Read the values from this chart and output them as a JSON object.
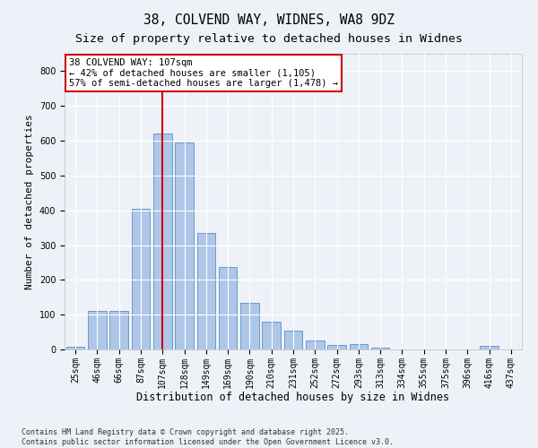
{
  "title1": "38, COLVEND WAY, WIDNES, WA8 9DZ",
  "title2": "Size of property relative to detached houses in Widnes",
  "xlabel": "Distribution of detached houses by size in Widnes",
  "ylabel": "Number of detached properties",
  "categories": [
    "25sqm",
    "46sqm",
    "66sqm",
    "87sqm",
    "107sqm",
    "128sqm",
    "149sqm",
    "169sqm",
    "190sqm",
    "210sqm",
    "231sqm",
    "252sqm",
    "272sqm",
    "293sqm",
    "313sqm",
    "334sqm",
    "355sqm",
    "375sqm",
    "396sqm",
    "416sqm",
    "437sqm"
  ],
  "values": [
    8,
    110,
    110,
    405,
    620,
    595,
    335,
    238,
    135,
    80,
    55,
    27,
    13,
    16,
    5,
    0,
    0,
    0,
    0,
    10,
    0
  ],
  "bar_color": "#aec6e8",
  "bar_edge_color": "#5a8fc2",
  "bar_linewidth": 0.6,
  "vline_index": 4,
  "vline_color": "#cc0000",
  "annotation_text": "38 COLVEND WAY: 107sqm\n← 42% of detached houses are smaller (1,105)\n57% of semi-detached houses are larger (1,478) →",
  "annotation_box_color": "#ffffff",
  "annotation_box_edge": "#cc0000",
  "ylim": [
    0,
    850
  ],
  "yticks": [
    0,
    100,
    200,
    300,
    400,
    500,
    600,
    700,
    800
  ],
  "bg_color": "#eef2f8",
  "grid_color": "#ffffff",
  "footer": "Contains HM Land Registry data © Crown copyright and database right 2025.\nContains public sector information licensed under the Open Government Licence v3.0.",
  "title1_fontsize": 10.5,
  "title2_fontsize": 9.5,
  "xlabel_fontsize": 8.5,
  "ylabel_fontsize": 8,
  "tick_fontsize": 7,
  "annotation_fontsize": 7.5,
  "footer_fontsize": 6
}
